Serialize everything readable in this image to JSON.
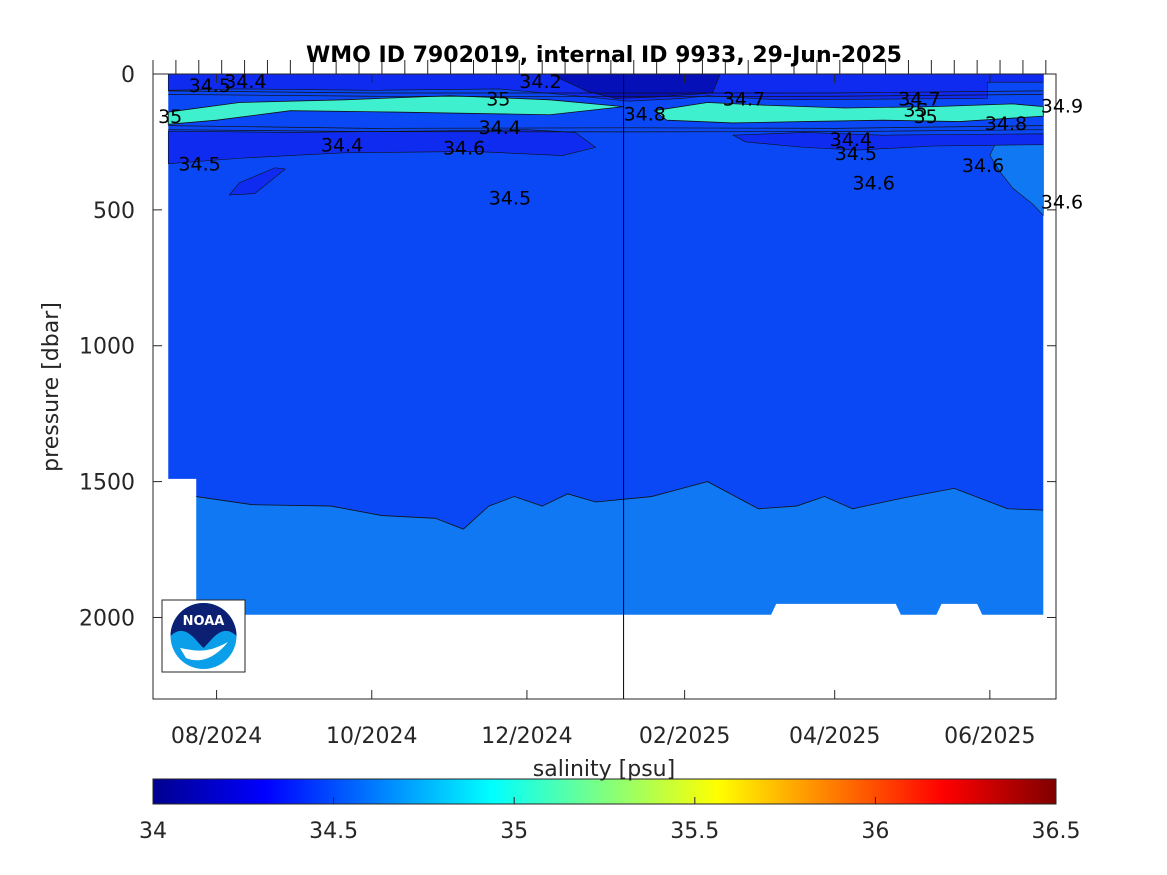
{
  "chart_data": {
    "type": "heatmap",
    "title": "WMO ID 7902019, internal ID 9933, 29-Jun-2025",
    "xlabel": "",
    "ylabel": "pressure [dbar]",
    "x_tick_labels": [
      "08/2024",
      "10/2024",
      "12/2024",
      "02/2025",
      "04/2025",
      "06/2025"
    ],
    "x_ticks": [
      "2024-08-01",
      "2024-10-01",
      "2024-12-01",
      "2025-02-01",
      "2025-04-01",
      "2025-06-01"
    ],
    "xlim": [
      "2024-07-07",
      "2025-06-27"
    ],
    "y_ticks": [
      0,
      500,
      1000,
      1500,
      2000
    ],
    "ylim": [
      0,
      2300
    ],
    "y_reversed": true,
    "data_xlim": [
      "2024-07-13",
      "2025-06-22"
    ],
    "vertical_line_date": "2025-01-08",
    "colorbar": {
      "label": "salinity [psu]",
      "ticks": [
        34,
        34.5,
        35,
        35.5,
        36,
        36.5
      ],
      "range": [
        34,
        36.5
      ],
      "colormap": [
        "#00008f",
        "#0000ff",
        "#00ffff",
        "#ffff00",
        "#ff0000",
        "#800000"
      ]
    },
    "layers": [
      {
        "salinity_range": "34.5-34.6",
        "color": "#0a48f5"
      },
      {
        "salinity_range": "34.6-34.7",
        "color": "#0f78f2"
      },
      {
        "salinity_range": "34.4-34.5",
        "color": "#0f2bf0"
      },
      {
        "salinity_range": "34.2-34.4",
        "color": "#0510b8"
      },
      {
        "salinity_range": "34.8-35.0",
        "color": "#3ff0cf"
      }
    ],
    "boundary_34_6_dbar": [
      {
        "date": "2024-07-24",
        "p": 1555
      },
      {
        "date": "2024-08-15",
        "p": 1585
      },
      {
        "date": "2024-09-15",
        "p": 1590
      },
      {
        "date": "2024-10-05",
        "p": 1625
      },
      {
        "date": "2024-10-26",
        "p": 1635
      },
      {
        "date": "2024-11-06",
        "p": 1675
      },
      {
        "date": "2024-11-16",
        "p": 1590
      },
      {
        "date": "2024-11-26",
        "p": 1555
      },
      {
        "date": "2024-12-07",
        "p": 1590
      },
      {
        "date": "2024-12-17",
        "p": 1545
      },
      {
        "date": "2024-12-28",
        "p": 1575
      },
      {
        "date": "2025-01-19",
        "p": 1555
      },
      {
        "date": "2025-01-31",
        "p": 1525
      },
      {
        "date": "2025-02-10",
        "p": 1500
      },
      {
        "date": "2025-03-02",
        "p": 1600
      },
      {
        "date": "2025-03-17",
        "p": 1590
      },
      {
        "date": "2025-03-28",
        "p": 1555
      },
      {
        "date": "2025-04-08",
        "p": 1600
      },
      {
        "date": "2025-04-28",
        "p": 1560
      },
      {
        "date": "2025-05-18",
        "p": 1525
      },
      {
        "date": "2025-06-08",
        "p": 1600
      },
      {
        "date": "2025-06-22",
        "p": 1605
      }
    ],
    "data_bottom_dbar": [
      {
        "date": "2024-07-13",
        "p": 1490
      },
      {
        "date": "2024-07-24",
        "p": 1990
      },
      {
        "date": "2025-03-07",
        "p": 1990
      },
      {
        "date": "2025-03-09",
        "p": 1950
      },
      {
        "date": "2025-04-25",
        "p": 1950
      },
      {
        "date": "2025-04-27",
        "p": 1990
      },
      {
        "date": "2025-05-11",
        "p": 1990
      },
      {
        "date": "2025-05-13",
        "p": 1950
      },
      {
        "date": "2025-05-27",
        "p": 1950
      },
      {
        "date": "2025-05-29",
        "p": 1990
      },
      {
        "date": "2025-06-22",
        "p": 1990
      }
    ],
    "contour_labels": [
      {
        "text": "34.5",
        "date": "2024-07-21",
        "p": 40
      },
      {
        "text": "34.4",
        "date": "2024-08-04",
        "p": 25
      },
      {
        "text": "34.2",
        "date": "2024-11-28",
        "p": 25
      },
      {
        "text": "35",
        "date": "2024-11-15",
        "p": 90
      },
      {
        "text": "35",
        "date": "2024-07-09",
        "p": 155
      },
      {
        "text": "34.8",
        "date": "2025-01-08",
        "p": 145
      },
      {
        "text": "34.7",
        "date": "2025-02-16",
        "p": 90
      },
      {
        "text": "34.7",
        "date": "2025-04-26",
        "p": 90
      },
      {
        "text": "35",
        "date": "2025-04-28",
        "p": 130
      },
      {
        "text": "35",
        "date": "2025-05-02",
        "p": 155
      },
      {
        "text": "34.9",
        "date": "2025-06-21",
        "p": 115
      },
      {
        "text": "34.8",
        "date": "2025-05-30",
        "p": 180
      },
      {
        "text": "34.4",
        "date": "2024-11-12",
        "p": 195
      },
      {
        "text": "34.4",
        "date": "2024-09-11",
        "p": 260
      },
      {
        "text": "34.6",
        "date": "2024-10-29",
        "p": 270
      },
      {
        "text": "34.4",
        "date": "2025-03-30",
        "p": 240
      },
      {
        "text": "34.5",
        "date": "2025-04-01",
        "p": 290
      },
      {
        "text": "34.5",
        "date": "2024-07-17",
        "p": 330
      },
      {
        "text": "34.6",
        "date": "2025-05-21",
        "p": 335
      },
      {
        "text": "34.6",
        "date": "2025-04-08",
        "p": 400
      },
      {
        "text": "34.5",
        "date": "2024-11-16",
        "p": 455
      },
      {
        "text": "34.6",
        "date": "2025-06-21",
        "p": 470
      }
    ]
  }
}
